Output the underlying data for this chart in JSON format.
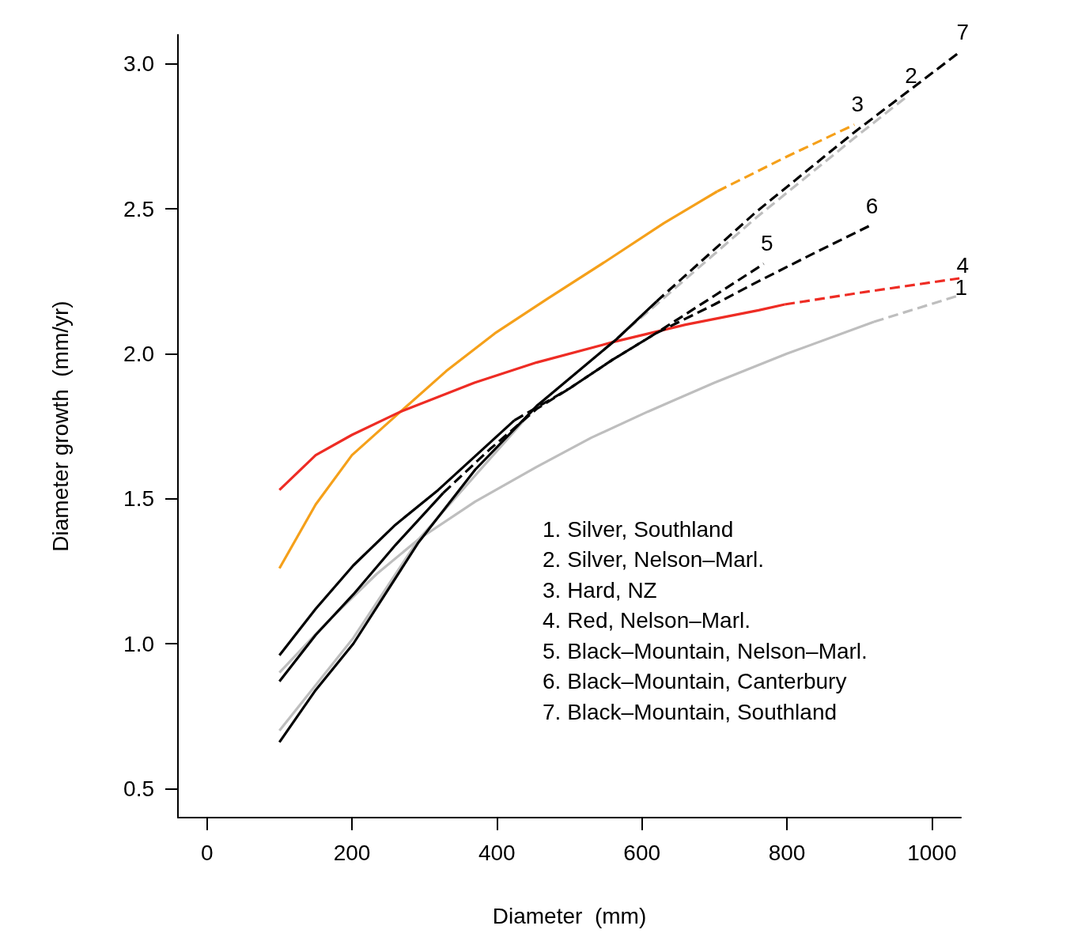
{
  "chart_data": {
    "type": "line",
    "xlabel": "Diameter  (mm)",
    "ylabel": "Diameter growth  (mm/yr)",
    "xlim": [
      -40,
      1040
    ],
    "xticks": [
      0,
      200,
      400,
      600,
      800,
      1000
    ],
    "ylim": [
      0.4,
      3.1
    ],
    "yticks": [
      0.5,
      {
        "value": 1,
        "label": "1.0"
      },
      1.5,
      {
        "value": 2,
        "label": "2.0"
      },
      2.5,
      {
        "value": 3,
        "label": "3.0"
      }
    ],
    "grid": false,
    "marker": "none",
    "annotations": [
      "1. Silver, Southland",
      "2. Silver, Nelson–Marl.",
      "3. Hard, NZ",
      "4. Red, Nelson–Marl.",
      "5. Black–Mountain, Nelson–Marl.",
      "6. Black–Mountain, Canterbury",
      "7. Black–Mountain, Southland"
    ],
    "series": [
      {
        "color": "#bebebe",
        "line_style": "solid",
        "x": [
          100,
          164,
          234,
          292,
          370,
          455,
          530,
          608,
          700,
          800,
          920
        ],
        "values": [
          0.9,
          1.07,
          1.24,
          1.36,
          1.49,
          1.61,
          1.71,
          1.8,
          1.9,
          2.0,
          2.11
        ]
      },
      {
        "name": "1",
        "color": "#bebebe",
        "line_style": "dashed",
        "x": [
          920,
          1036
        ],
        "values": [
          2.11,
          2.2
        ]
      },
      {
        "color": "#bebebe",
        "line_style": "solid",
        "x": [
          100,
          202,
          292,
          455,
          550
        ],
        "values": [
          0.7,
          1.02,
          1.36,
          1.82,
          2.02
        ]
      },
      {
        "name": "2",
        "color": "#bebebe",
        "line_style": "dashed",
        "x": [
          550,
          620,
          758,
          891,
          967
        ],
        "values": [
          2.02,
          2.17,
          2.47,
          2.74,
          2.89
        ]
      },
      {
        "color": "#f5a01a",
        "line_style": "solid",
        "x": [
          100,
          150,
          200,
          267,
          330,
          397,
          470,
          551,
          630,
          704
        ],
        "values": [
          1.26,
          1.48,
          1.65,
          1.8,
          1.94,
          2.07,
          2.19,
          2.32,
          2.45,
          2.56
        ]
      },
      {
        "name": "3",
        "color": "#f5a01a",
        "line_style": "dashed",
        "x": [
          704,
          800,
          893
        ],
        "values": [
          2.56,
          2.68,
          2.79
        ]
      },
      {
        "color": "#ee2c24",
        "line_style": "solid",
        "x": [
          100,
          150,
          200,
          267,
          369,
          455,
          560,
          660,
          761,
          797
        ],
        "values": [
          1.53,
          1.65,
          1.72,
          1.8,
          1.9,
          1.97,
          2.04,
          2.1,
          2.15,
          2.17
        ]
      },
      {
        "name": "4",
        "color": "#ee2c24",
        "line_style": "dashed",
        "x": [
          797,
          900,
          1038
        ],
        "values": [
          2.17,
          2.21,
          2.26
        ]
      },
      {
        "color": "#000000",
        "line_style": "solid",
        "x": [
          100,
          150,
          202,
          260,
          326
        ],
        "values": [
          0.87,
          1.03,
          1.17,
          1.34,
          1.52
        ]
      },
      {
        "name": "5",
        "color": "#000000",
        "line_style": "dashed",
        "x": [
          326,
          390,
          455,
          500,
          560,
          619,
          700,
          768
        ],
        "values": [
          1.52,
          1.67,
          1.81,
          1.88,
          1.98,
          2.07,
          2.2,
          2.31
        ]
      },
      {
        "color": "#000000",
        "line_style": "solid",
        "x": [
          100,
          150,
          202,
          260,
          319,
          424
        ],
        "values": [
          0.96,
          1.12,
          1.27,
          1.41,
          1.53,
          1.77
        ]
      },
      {
        "name": "6",
        "color": "#000000",
        "line_style": "dashed",
        "x": [
          424,
          500,
          560,
          619,
          700,
          761,
          840,
          913
        ],
        "values": [
          1.77,
          1.88,
          1.98,
          2.07,
          2.17,
          2.25,
          2.35,
          2.44
        ]
      },
      {
        "color": "#000000",
        "line_style": "solid",
        "x": [
          100,
          150,
          202,
          292,
          370,
          455,
          565,
          620
        ],
        "values": [
          0.66,
          0.84,
          1.0,
          1.35,
          1.6,
          1.82,
          2.05,
          2.18
        ]
      },
      {
        "name": "7",
        "color": "#000000",
        "line_style": "dashed",
        "x": [
          620,
          758,
          891,
          1038
        ],
        "values": [
          2.18,
          2.49,
          2.76,
          3.04
        ]
      }
    ]
  }
}
